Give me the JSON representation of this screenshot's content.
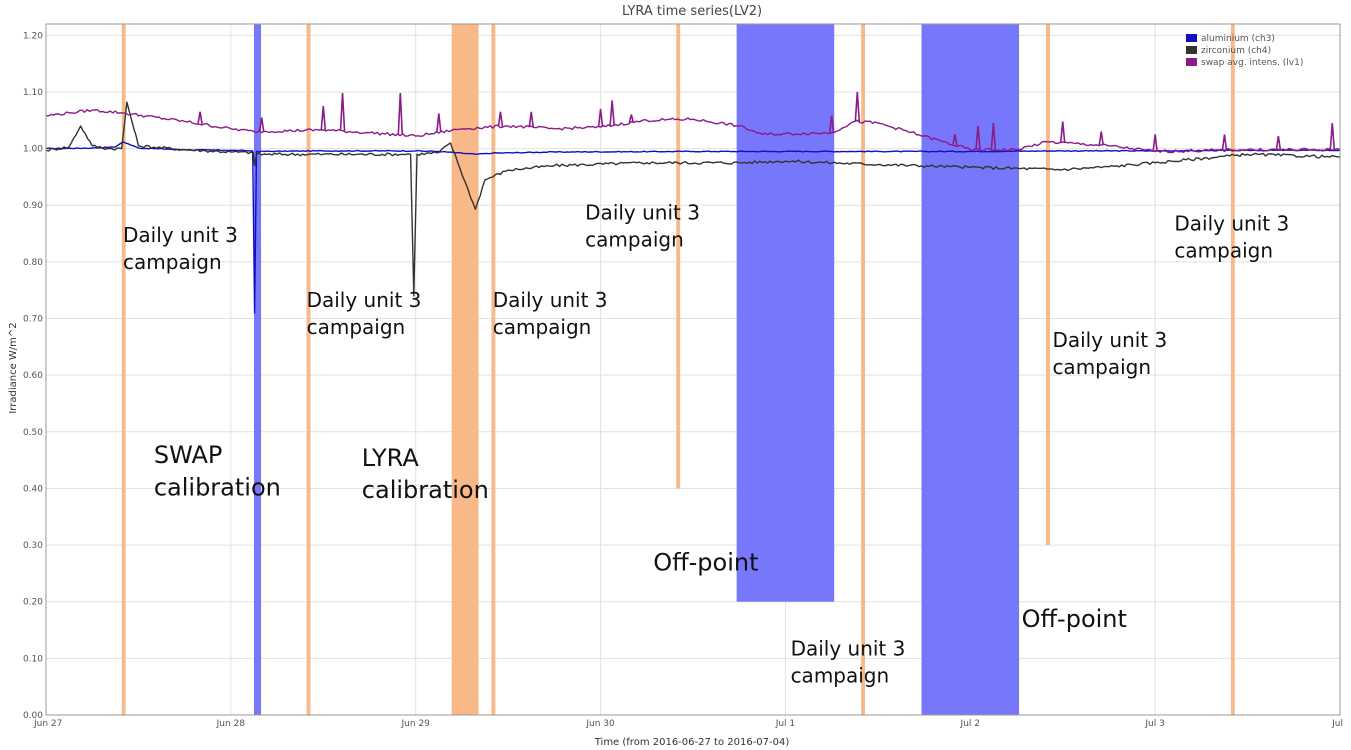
{
  "chart_data": {
    "type": "line",
    "title": "LYRA time series(LV2)",
    "xlabel": "Time (from 2016-06-27 to 2016-07-04)",
    "ylabel": "Irradiance W/m^2",
    "x_range": [
      "2016-06-27T00:00",
      "2016-07-04T00:00"
    ],
    "x_ticks": [
      {
        "t": "2016-06-27T00:00",
        "label": "Jun 27"
      },
      {
        "t": "2016-06-28T00:00",
        "label": "Jun 28"
      },
      {
        "t": "2016-06-29T00:00",
        "label": "Jun 29"
      },
      {
        "t": "2016-06-30T00:00",
        "label": "Jun 30"
      },
      {
        "t": "2016-07-01T00:00",
        "label": "Jul 1"
      },
      {
        "t": "2016-07-02T00:00",
        "label": "Jul 2"
      },
      {
        "t": "2016-07-03T00:00",
        "label": "Jul 3"
      },
      {
        "t": "2016-07-04T00:00",
        "label": "Jul"
      }
    ],
    "ylim": [
      0,
      1.22
    ],
    "y_ticks": [
      "0.00",
      "0.10",
      "0.20",
      "0.30",
      "0.40",
      "0.50",
      "0.60",
      "0.70",
      "0.80",
      "0.90",
      "1.00",
      "1.10",
      "1.20"
    ],
    "grid": true,
    "legend_position": "top-right",
    "series": [
      {
        "name": "aluminium (ch3)",
        "color": "#1010c0",
        "points": [
          [
            "2016-06-27T00:00",
            1.0
          ],
          [
            "2016-06-27T06:00",
            1.001
          ],
          [
            "2016-06-27T09:00",
            1.003
          ],
          [
            "2016-06-27T10:00",
            1.012
          ],
          [
            "2016-06-27T12:00",
            1.001
          ],
          [
            "2016-06-27T18:00",
            0.998
          ],
          [
            "2016-06-28T00:00",
            0.997
          ],
          [
            "2016-06-28T02:50",
            0.996
          ],
          [
            "2016-06-28T03:05",
            0.71
          ],
          [
            "2016-06-28T03:20",
            0.995
          ],
          [
            "2016-06-28T12:00",
            0.996
          ],
          [
            "2016-06-29T00:00",
            0.996
          ],
          [
            "2016-06-29T03:00",
            0.995
          ],
          [
            "2016-06-29T07:50",
            0.99
          ],
          [
            "2016-06-29T10:00",
            0.992
          ],
          [
            "2016-06-29T18:00",
            0.994
          ],
          [
            "2016-06-30T12:00",
            0.995
          ],
          [
            "2016-07-01T00:00",
            0.995
          ],
          [
            "2016-07-01T12:00",
            0.995
          ],
          [
            "2016-07-02T00:00",
            0.995
          ],
          [
            "2016-07-02T12:00",
            0.996
          ],
          [
            "2016-07-03T00:00",
            0.996
          ],
          [
            "2016-07-03T12:00",
            0.997
          ],
          [
            "2016-07-04T00:00",
            0.997
          ]
        ]
      },
      {
        "name": "zirconium (ch4)",
        "color": "#333333",
        "points": [
          [
            "2016-06-27T00:00",
            0.997
          ],
          [
            "2016-06-27T03:00",
            1.003
          ],
          [
            "2016-06-27T04:30",
            1.04
          ],
          [
            "2016-06-27T06:00",
            1.005
          ],
          [
            "2016-06-27T08:00",
            1.0
          ],
          [
            "2016-06-27T09:50",
            1.0
          ],
          [
            "2016-06-27T10:30",
            1.082
          ],
          [
            "2016-06-27T12:00",
            1.005
          ],
          [
            "2016-06-27T18:00",
            0.998
          ],
          [
            "2016-06-28T00:00",
            0.994
          ],
          [
            "2016-06-28T02:55",
            0.993
          ],
          [
            "2016-06-28T03:05",
            0.97
          ],
          [
            "2016-06-28T03:20",
            0.99
          ],
          [
            "2016-06-28T12:00",
            0.99
          ],
          [
            "2016-06-28T23:20",
            0.99
          ],
          [
            "2016-06-28T23:45",
            0.74
          ],
          [
            "2016-06-29T00:10",
            0.99
          ],
          [
            "2016-06-29T03:00",
            0.993
          ],
          [
            "2016-06-29T04:30",
            1.01
          ],
          [
            "2016-06-29T07:45",
            0.893
          ],
          [
            "2016-06-29T09:00",
            0.945
          ],
          [
            "2016-06-29T12:00",
            0.962
          ],
          [
            "2016-06-29T18:00",
            0.97
          ],
          [
            "2016-06-30T06:00",
            0.975
          ],
          [
            "2016-06-30T18:00",
            0.975
          ],
          [
            "2016-07-01T00:00",
            0.978
          ],
          [
            "2016-07-01T12:00",
            0.972
          ],
          [
            "2016-07-02T00:00",
            0.967
          ],
          [
            "2016-07-02T12:00",
            0.963
          ],
          [
            "2016-07-02T18:00",
            0.968
          ],
          [
            "2016-07-03T00:00",
            0.975
          ],
          [
            "2016-07-03T12:00",
            0.99
          ],
          [
            "2016-07-04T00:00",
            0.985
          ]
        ]
      },
      {
        "name": "swap avg. intens. (lv1)",
        "color": "#8b1a8b",
        "points": [
          [
            "2016-06-27T00:00",
            1.058
          ],
          [
            "2016-06-27T03:00",
            1.063
          ],
          [
            "2016-06-27T06:00",
            1.068
          ],
          [
            "2016-06-27T10:00",
            1.063
          ],
          [
            "2016-06-27T18:00",
            1.048
          ],
          [
            "2016-06-28T00:00",
            1.035
          ],
          [
            "2016-06-28T03:00",
            1.03
          ],
          [
            "2016-06-28T12:00",
            1.033
          ],
          [
            "2016-06-28T18:00",
            1.028
          ],
          [
            "2016-06-29T00:00",
            1.022
          ],
          [
            "2016-06-29T06:00",
            1.035
          ],
          [
            "2016-06-29T12:00",
            1.04
          ],
          [
            "2016-06-29T18:00",
            1.035
          ],
          [
            "2016-06-30T00:00",
            1.038
          ],
          [
            "2016-06-30T06:00",
            1.05
          ],
          [
            "2016-06-30T12:00",
            1.052
          ],
          [
            "2016-06-30T18:00",
            1.04
          ],
          [
            "2016-06-30T21:00",
            1.025
          ],
          [
            "2016-07-01T06:00",
            1.028
          ],
          [
            "2016-07-01T09:00",
            1.048
          ],
          [
            "2016-07-01T12:00",
            1.045
          ],
          [
            "2016-07-01T18:00",
            1.022
          ],
          [
            "2016-07-02T00:00",
            0.998
          ],
          [
            "2016-07-02T06:00",
            0.998
          ],
          [
            "2016-07-02T10:00",
            1.012
          ],
          [
            "2016-07-02T18:00",
            1.005
          ],
          [
            "2016-07-03T00:00",
            0.995
          ],
          [
            "2016-07-03T12:00",
            0.998
          ],
          [
            "2016-07-04T00:00",
            0.998
          ]
        ],
        "spikes": [
          [
            "2016-06-27T20:00",
            1.065
          ],
          [
            "2016-06-28T04:00",
            1.055
          ],
          [
            "2016-06-28T12:00",
            1.075
          ],
          [
            "2016-06-28T14:30",
            1.098
          ],
          [
            "2016-06-28T22:00",
            1.098
          ],
          [
            "2016-06-29T03:00",
            1.062
          ],
          [
            "2016-06-29T11:00",
            1.065
          ],
          [
            "2016-06-29T15:00",
            1.065
          ],
          [
            "2016-06-30T00:00",
            1.07
          ],
          [
            "2016-06-30T01:30",
            1.085
          ],
          [
            "2016-06-30T04:00",
            1.06
          ],
          [
            "2016-07-01T06:00",
            1.058
          ],
          [
            "2016-07-01T09:20",
            1.1
          ],
          [
            "2016-07-01T22:00",
            1.025
          ],
          [
            "2016-07-02T01:00",
            1.04
          ],
          [
            "2016-07-02T03:00",
            1.045
          ],
          [
            "2016-07-02T12:00",
            1.048
          ],
          [
            "2016-07-02T17:00",
            1.03
          ],
          [
            "2016-07-03T00:00",
            1.025
          ],
          [
            "2016-07-03T09:00",
            1.025
          ],
          [
            "2016-07-03T16:00",
            1.022
          ],
          [
            "2016-07-03T23:00",
            1.045
          ]
        ]
      }
    ],
    "bands": [
      {
        "start": "2016-06-27T09:50",
        "end": "2016-06-27T10:20",
        "ymin": 0,
        "ymax": 1.22,
        "color": "#f8b888"
      },
      {
        "start": "2016-06-28T03:00",
        "end": "2016-06-28T03:55",
        "ymin": 0,
        "ymax": 1.22,
        "color": "#7777f8"
      },
      {
        "start": "2016-06-28T09:50",
        "end": "2016-06-28T10:20",
        "ymin": 0,
        "ymax": 1.22,
        "color": "#f8b888"
      },
      {
        "start": "2016-06-29T04:40",
        "end": "2016-06-29T08:10",
        "ymin": 0,
        "ymax": 1.22,
        "color": "#f8b888"
      },
      {
        "start": "2016-06-29T09:50",
        "end": "2016-06-29T10:20",
        "ymin": 0,
        "ymax": 1.22,
        "color": "#f8b888"
      },
      {
        "start": "2016-06-30T09:50",
        "end": "2016-06-30T10:20",
        "ymin": 0.4,
        "ymax": 1.22,
        "color": "#f8b888"
      },
      {
        "start": "2016-06-30T17:40",
        "end": "2016-07-01T06:20",
        "ymin": 0.2,
        "ymax": 1.22,
        "color": "#7777fb"
      },
      {
        "start": "2016-07-01T09:50",
        "end": "2016-07-01T10:20",
        "ymin": 0,
        "ymax": 1.22,
        "color": "#f8b888"
      },
      {
        "start": "2016-07-01T17:40",
        "end": "2016-07-02T06:20",
        "ymin": 0,
        "ymax": 1.22,
        "color": "#7777fb"
      },
      {
        "start": "2016-07-02T09:50",
        "end": "2016-07-02T10:20",
        "ymin": 0.3,
        "ymax": 1.22,
        "color": "#f8b888"
      },
      {
        "start": "2016-07-03T09:50",
        "end": "2016-07-03T10:20",
        "ymin": 0,
        "ymax": 1.22,
        "color": "#f8b888"
      }
    ],
    "annotations": [
      {
        "lines": [
          "Daily unit 3",
          "campaign"
        ],
        "t": "2016-06-27T10:00",
        "y": 0.835,
        "size": 20
      },
      {
        "lines": [
          "Daily unit 3",
          "campaign"
        ],
        "t": "2016-06-28T09:50",
        "y": 0.72,
        "size": 20
      },
      {
        "lines": [
          "Daily unit 3",
          "campaign"
        ],
        "t": "2016-06-29T10:00",
        "y": 0.72,
        "size": 20
      },
      {
        "lines": [
          "Daily unit 3",
          "campaign"
        ],
        "t": "2016-06-29T22:00",
        "y": 0.875,
        "size": 20
      },
      {
        "lines": [
          "Daily unit 3",
          "campaign"
        ],
        "t": "2016-07-01T00:40",
        "y": 0.105,
        "size": 20
      },
      {
        "lines": [
          "Daily unit 3",
          "campaign"
        ],
        "t": "2016-07-02T10:40",
        "y": 0.65,
        "size": 20
      },
      {
        "lines": [
          "Daily unit 3",
          "campaign"
        ],
        "t": "2016-07-03T02:30",
        "y": 0.855,
        "size": 20
      },
      {
        "lines": [
          "SWAP",
          "calibration"
        ],
        "t": "2016-06-27T14:00",
        "y": 0.445,
        "size": 24
      },
      {
        "lines": [
          "LYRA",
          "calibration"
        ],
        "t": "2016-06-28T17:00",
        "y": 0.44,
        "size": 24
      },
      {
        "lines": [
          "Off-point"
        ],
        "t": "2016-06-30T06:50",
        "y": 0.255,
        "size": 24
      },
      {
        "lines": [
          "Off-point"
        ],
        "t": "2016-07-02T06:40",
        "y": 0.155,
        "size": 24
      }
    ]
  }
}
